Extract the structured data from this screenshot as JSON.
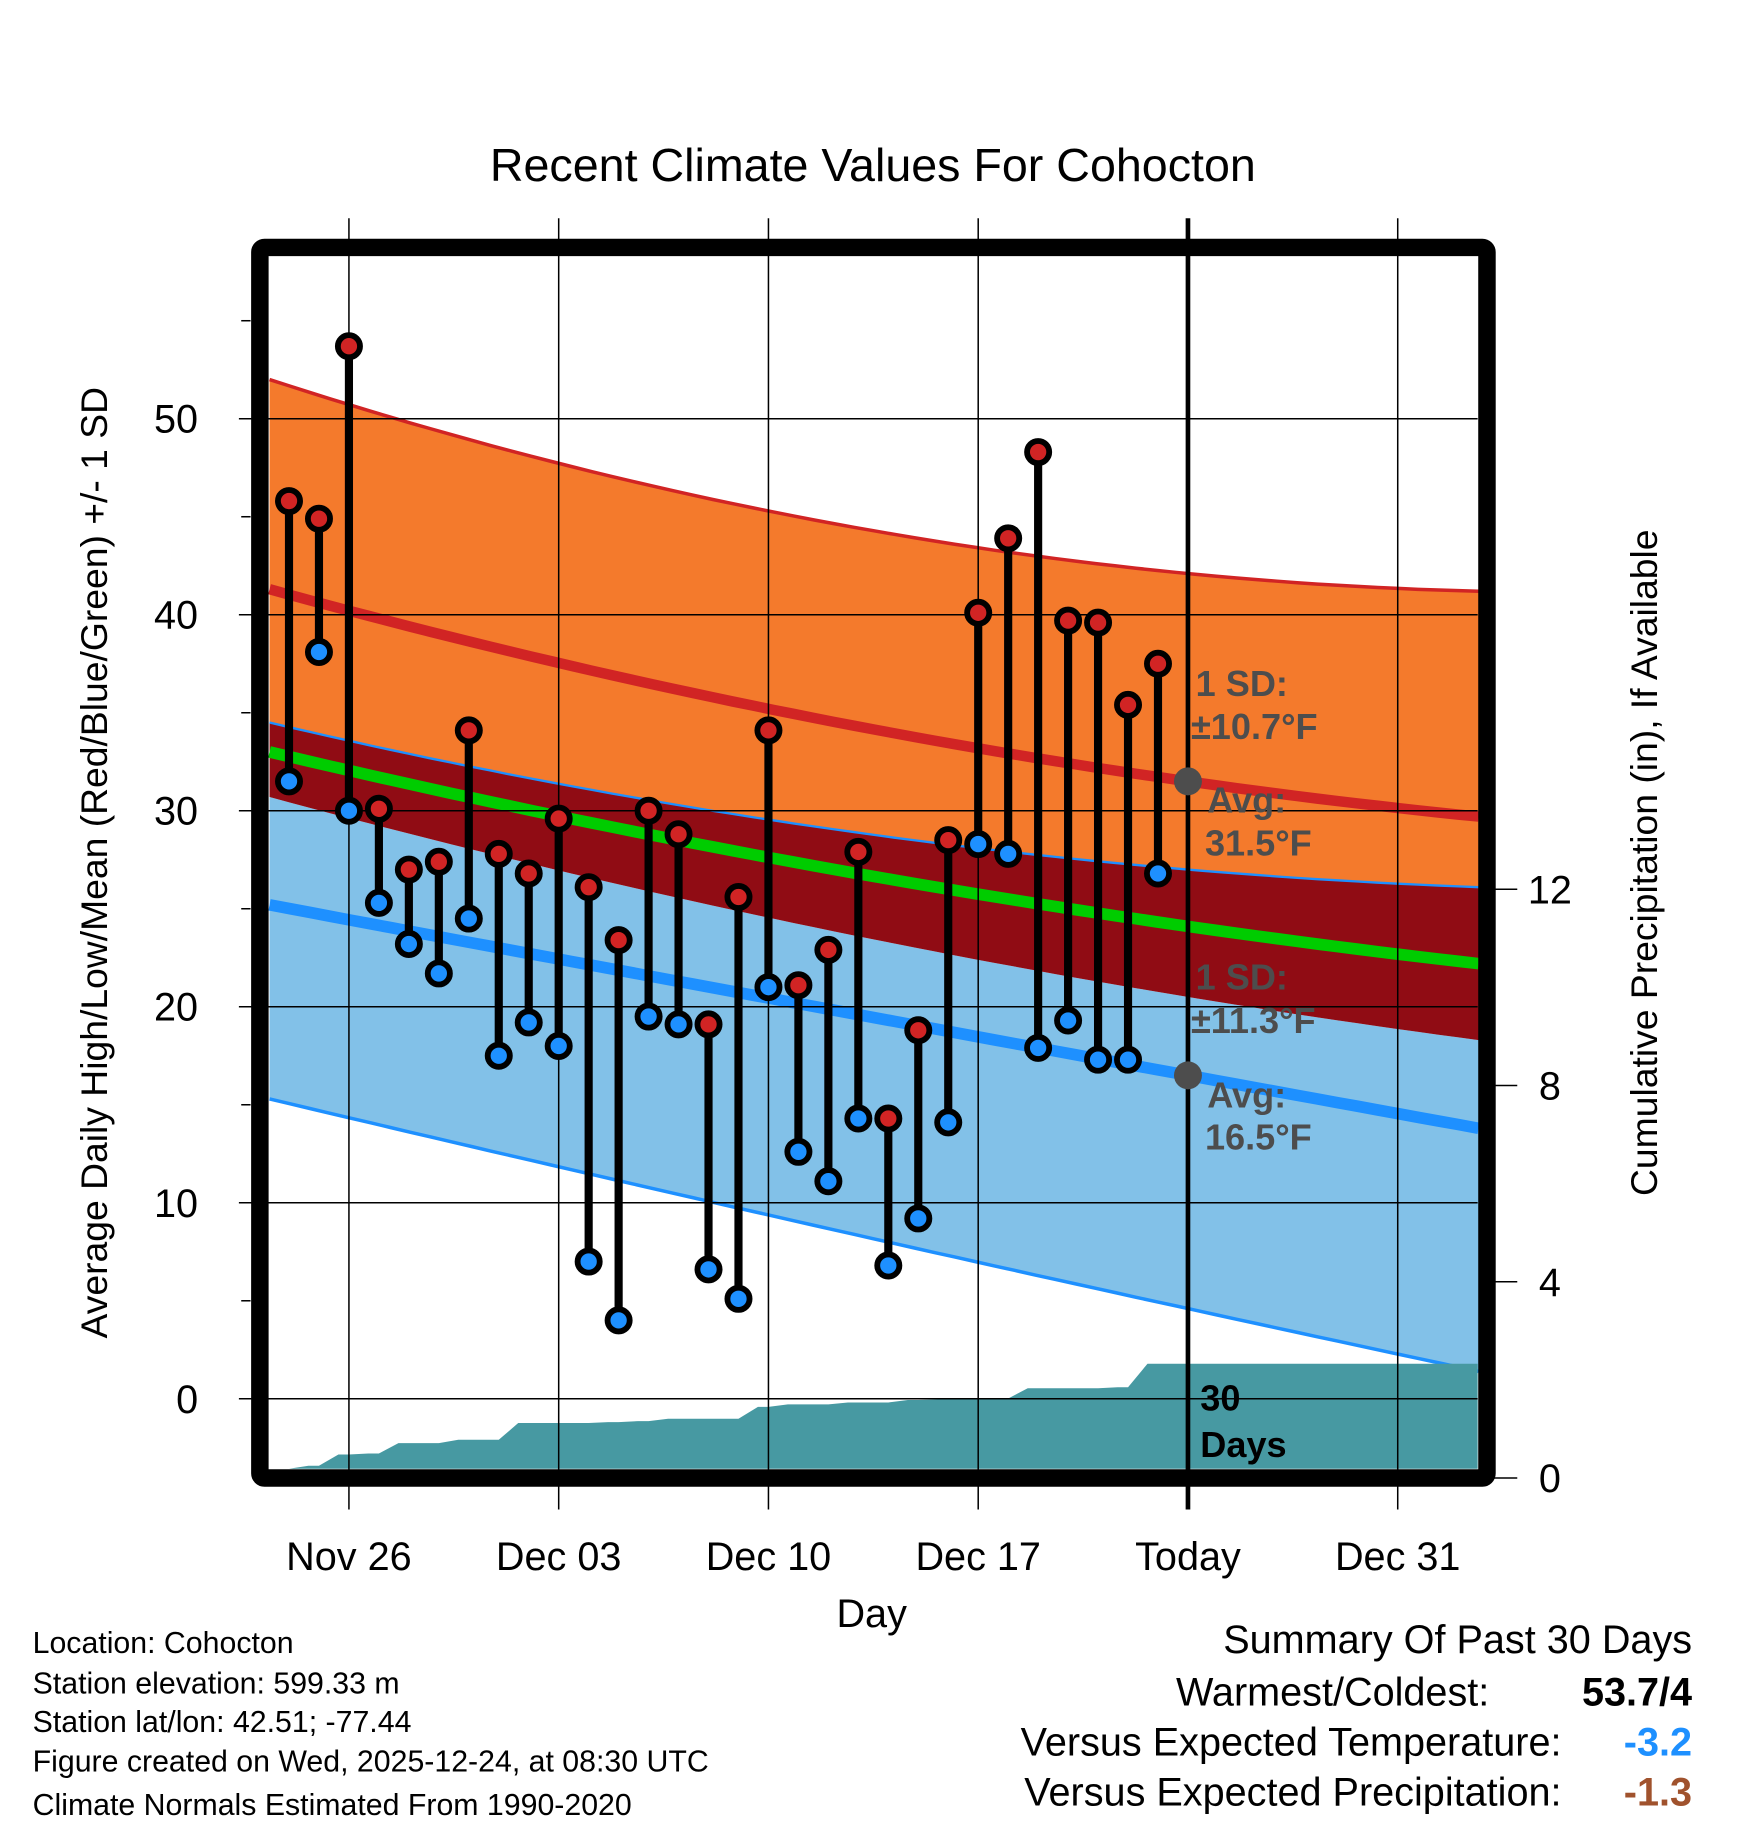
{
  "chart_data": {
    "type": "line",
    "title": "Recent Climate Values For Cohocton",
    "xlabel": "Day",
    "ylabel": "Average Daily High/Low/Mean (Red/Blue/Green) +/- 1 SD",
    "y2label": "Cumulative Precipitation (in), If Available",
    "ylim": [
      -3.6,
      58.3
    ],
    "y2lim": [
      0,
      24
    ],
    "grid": true,
    "x_ticks": [
      {
        "day": 2,
        "label": "Nov 26"
      },
      {
        "day": 9,
        "label": "Dec 03"
      },
      {
        "day": 16,
        "label": "Dec 10"
      },
      {
        "day": 23,
        "label": "Dec 17"
      },
      {
        "day": 30,
        "label": "Today"
      },
      {
        "day": 37,
        "label": "Dec 31"
      }
    ],
    "y_ticks": [
      "0",
      "10",
      "20",
      "30",
      "40",
      "50"
    ],
    "y2_ticks": [
      "0",
      "4",
      "8",
      "12"
    ],
    "x_range_days": [
      -0.65,
      39.7
    ],
    "days_note": "day 0 = Nov 24",
    "observed": {
      "high": [
        45.8,
        44.9,
        53.7,
        30.1,
        27.0,
        27.4,
        34.1,
        27.8,
        26.8,
        29.6,
        26.1,
        23.4,
        30.0,
        28.8,
        19.1,
        25.6,
        34.1,
        21.1,
        22.9,
        27.9,
        14.3,
        18.8,
        28.5,
        40.1,
        43.9,
        48.3,
        39.7,
        39.6,
        35.4,
        37.5
      ],
      "low": [
        31.5,
        38.1,
        30.0,
        25.3,
        23.2,
        21.7,
        24.5,
        17.5,
        19.2,
        18.0,
        7.0,
        4.0,
        19.5,
        19.1,
        6.6,
        5.1,
        21.0,
        12.6,
        11.1,
        14.3,
        6.8,
        9.2,
        14.1,
        28.3,
        27.8,
        17.9,
        19.3,
        17.3,
        17.3,
        26.8
      ]
    },
    "normals": {
      "days": [
        -0.65,
        30,
        39.7
      ],
      "high_plus_sd": [
        52.0,
        42.1,
        41.2
      ],
      "high_avg": [
        41.3,
        31.5,
        29.7
      ],
      "high_minus_sd": [
        34.5,
        27.0,
        26.1
      ],
      "mean": [
        33.0,
        24.1,
        22.2
      ],
      "low_plus_sd": [
        30.7,
        20.5,
        18.3
      ],
      "low_avg": [
        25.2,
        16.5,
        13.8
      ],
      "low_minus_sd": [
        15.3,
        4.6,
        1.4
      ]
    },
    "precip_cumulative": [
      0.05,
      0.25,
      0.48,
      0.5,
      0.71,
      0.71,
      0.78,
      0.78,
      1.12,
      1.12,
      1.12,
      1.14,
      1.16,
      1.21,
      1.21,
      1.21,
      1.45,
      1.5,
      1.5,
      1.54,
      1.54,
      1.59,
      1.6,
      1.62,
      1.62,
      1.83,
      1.83,
      1.83,
      1.85,
      2.33
    ],
    "annotations": {
      "high_sd_l1": "1 SD:",
      "high_sd_l2": "±10.7°F",
      "high_avg_l1": "Avg:",
      "high_avg_l2": "31.5°F",
      "low_sd_l1": "1 SD:",
      "low_sd_l2": "±11.3°F",
      "low_avg_l1": "Avg:",
      "low_avg_l2": "16.5°F",
      "days_l1": "30",
      "days_l2": "Days"
    },
    "colors": {
      "orange": "#f47a2c",
      "darkred": "#900c14",
      "lightblue": "#82c1e8",
      "red": "#d12424",
      "blue": "#1e90ff",
      "green": "#00cc00",
      "teal": "#4799a2"
    }
  },
  "footer": {
    "location": "Location: Cohocton",
    "elevation": "Station elevation: 599.33 m",
    "latlon": "Station lat/lon: 42.51; -77.44",
    "created": "Figure created on Wed, 2025-12-24, at 08:30 UTC",
    "normals": "Climate Normals Estimated From 1990-2020"
  },
  "summary": {
    "title": "Summary Of Past 30 Days",
    "warm_cold_label": "Warmest/Coldest:",
    "warm_cold_value": "53.7/4",
    "temp_label": "Versus Expected Temperature:",
    "temp_value": "-3.2",
    "precip_label": "Versus Expected Precipitation:",
    "precip_value": "-1.3",
    "temp_color": "#1e90ff",
    "precip_color": "#a0522d"
  }
}
